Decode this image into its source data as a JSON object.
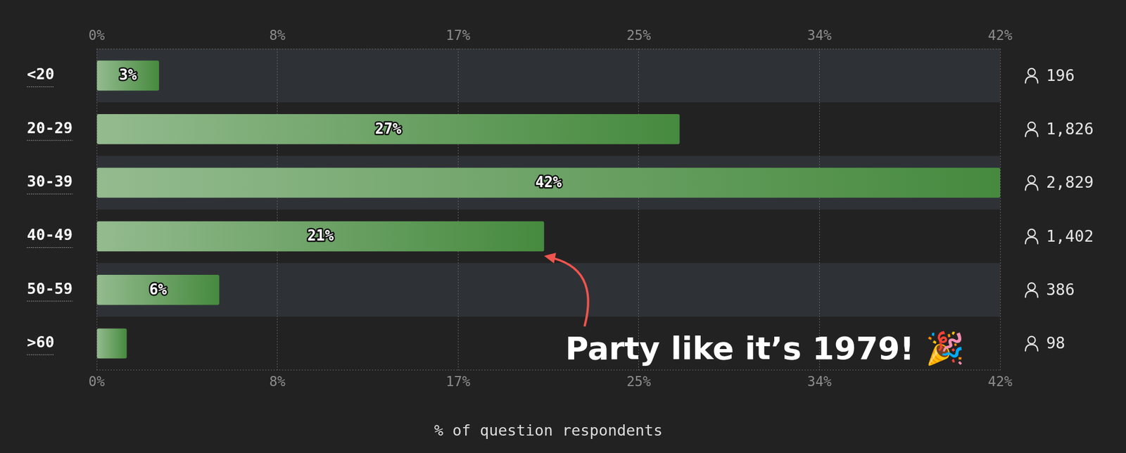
{
  "chart_data": {
    "type": "bar",
    "orientation": "horizontal",
    "categories": [
      "<20",
      "20-29",
      "30-39",
      "40-49",
      "50-59",
      ">60"
    ],
    "values": [
      2.9,
      27.1,
      42,
      20.8,
      5.7,
      1.4
    ],
    "value_labels": [
      "3%",
      "27%",
      "42%",
      "21%",
      "6%",
      null
    ],
    "data_labels": true,
    "counts": [
      196,
      1826,
      2829,
      1402,
      386,
      98
    ],
    "color": "#468a3e",
    "xlim": [
      0,
      42
    ],
    "xticks": [
      {
        "value": 0,
        "label": "0%"
      },
      {
        "value": 8.4,
        "label": "8%"
      },
      {
        "value": 16.8,
        "label": "17%"
      },
      {
        "value": 25.2,
        "label": "25%"
      },
      {
        "value": 33.6,
        "label": "34%"
      },
      {
        "value": 42,
        "label": "42%"
      }
    ],
    "x_label": "% of question respondents",
    "grid": true,
    "annotation": {
      "text": "Party like it’s 1979! 🎉",
      "category": "40-49"
    }
  }
}
